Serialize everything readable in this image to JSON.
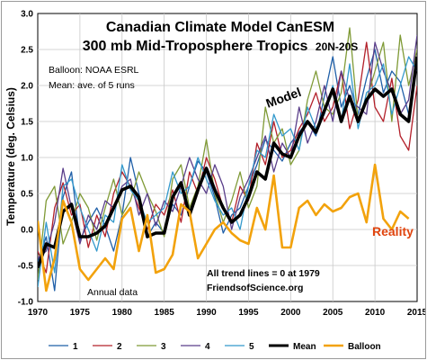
{
  "chart_data": {
    "type": "line",
    "title_line1": "Canadian Climate Model CanESM",
    "title_line2": "300 mb Mid-Troposphere Tropics",
    "title_region": "20N-20S",
    "ylabel": "Temperature (deg. Celsius)",
    "xlabel": "",
    "xlim": [
      1970,
      2015
    ],
    "ylim": [
      -1.0,
      3.0
    ],
    "x_ticks": [
      "1970",
      "1975",
      "1980",
      "1985",
      "1990",
      "1995",
      "2000",
      "2005",
      "2010",
      "2015"
    ],
    "y_ticks": [
      "3.0",
      "2.5",
      "2.0",
      "1.5",
      "1.0",
      "0.5",
      "0.0",
      "-0.5",
      "-1.0"
    ],
    "grid": true,
    "legend_position": "bottom",
    "annotations": {
      "balloon_source": "Balloon: NOAA ESRL",
      "mean_note": "Mean: ave. of 5 runs",
      "model_label": "Model",
      "reality_label": "Reality",
      "trend_note": "All trend lines = 0 at 1979",
      "site": "FriendsofScience.org",
      "annual_note": "Annual data"
    },
    "x": [
      1970,
      1971,
      1972,
      1973,
      1974,
      1975,
      1976,
      1977,
      1978,
      1979,
      1980,
      1981,
      1982,
      1983,
      1984,
      1985,
      1986,
      1987,
      1988,
      1989,
      1990,
      1991,
      1992,
      1993,
      1994,
      1995,
      1996,
      1997,
      1998,
      1999,
      2000,
      2001,
      2002,
      2003,
      2004,
      2005,
      2006,
      2007,
      2008,
      2009,
      2010,
      2011,
      2012,
      2013,
      2014,
      2015
    ],
    "series": [
      {
        "name": "1",
        "color": "#1f5fa8",
        "width": 1.3,
        "values": [
          -0.45,
          -0.1,
          -0.85,
          0.45,
          0.8,
          -0.15,
          0.1,
          0.3,
          0.05,
          -0.3,
          0.2,
          1.0,
          0.5,
          -0.1,
          0.1,
          -0.05,
          0.35,
          0.2,
          0.6,
          0.95,
          0.8,
          0.45,
          -0.05,
          0.2,
          0.3,
          0.6,
          0.9,
          1.25,
          1.1,
          0.95,
          1.2,
          1.35,
          1.5,
          1.3,
          1.85,
          2.4,
          1.7,
          2.0,
          1.6,
          2.1,
          2.5,
          1.9,
          2.2,
          2.05,
          1.6,
          2.3
        ]
      },
      {
        "name": "2",
        "color": "#b3202a",
        "width": 1.3,
        "values": [
          -0.3,
          -0.6,
          0.3,
          0.65,
          0.2,
          0.35,
          -0.25,
          0.2,
          -0.1,
          0.5,
          0.8,
          0.6,
          0.3,
          0.0,
          0.35,
          0.2,
          0.55,
          0.1,
          0.8,
          0.5,
          1.0,
          0.7,
          0.3,
          0.1,
          0.6,
          0.4,
          1.2,
          0.9,
          1.5,
          1.0,
          1.1,
          1.4,
          1.6,
          1.9,
          1.5,
          1.7,
          2.2,
          1.4,
          1.8,
          2.6,
          1.7,
          1.5,
          2.1,
          1.3,
          1.1,
          2.0
        ]
      },
      {
        "name": "3",
        "color": "#7f9a36",
        "width": 1.3,
        "values": [
          -0.7,
          0.4,
          0.6,
          -0.2,
          0.1,
          0.5,
          0.3,
          -0.15,
          0.3,
          0.7,
          0.2,
          0.4,
          0.8,
          0.5,
          0.25,
          -0.1,
          0.7,
          0.9,
          0.3,
          0.6,
          1.25,
          0.5,
          0.1,
          0.4,
          0.8,
          0.3,
          0.6,
          1.7,
          1.2,
          1.4,
          0.9,
          1.1,
          1.8,
          2.2,
          1.7,
          1.6,
          1.9,
          2.8,
          1.5,
          1.8,
          2.2,
          2.6,
          1.5,
          2.7,
          2.0,
          2.5
        ]
      },
      {
        "name": "4",
        "color": "#5a3e8a",
        "width": 1.3,
        "values": [
          -0.4,
          -0.3,
          0.1,
          0.85,
          0.3,
          -0.2,
          0.2,
          0.0,
          0.4,
          0.3,
          0.6,
          0.7,
          0.2,
          0.5,
          0.05,
          0.4,
          0.25,
          0.6,
          1.0,
          0.7,
          0.5,
          0.9,
          0.6,
          0.0,
          0.45,
          0.7,
          1.0,
          1.3,
          0.8,
          1.2,
          1.0,
          1.7,
          1.2,
          1.5,
          2.0,
          1.5,
          2.2,
          1.8,
          1.7,
          1.6,
          2.6,
          2.2,
          1.9,
          1.6,
          1.8,
          2.7
        ]
      },
      {
        "name": "5",
        "color": "#3399cc",
        "width": 1.3,
        "values": [
          -0.8,
          0.1,
          -0.6,
          0.6,
          0.7,
          0.3,
          0.0,
          -0.3,
          0.2,
          0.1,
          0.9,
          0.55,
          0.4,
          0.1,
          0.2,
          0.3,
          0.8,
          0.5,
          0.6,
          1.0,
          0.7,
          0.4,
          0.2,
          0.3,
          0.0,
          0.6,
          1.1,
          1.0,
          1.6,
          1.3,
          1.4,
          1.1,
          1.7,
          1.4,
          1.6,
          2.0,
          1.5,
          2.3,
          1.4,
          1.9,
          2.0,
          2.3,
          1.6,
          2.0,
          2.4,
          2.2
        ]
      },
      {
        "name": "Mean",
        "color": "#000000",
        "width": 3.6,
        "values": [
          -0.53,
          -0.2,
          -0.25,
          0.25,
          0.35,
          -0.1,
          -0.1,
          -0.05,
          0.05,
          0.3,
          0.55,
          0.6,
          0.45,
          -0.1,
          -0.05,
          -0.05,
          0.45,
          0.65,
          0.2,
          0.55,
          0.85,
          0.55,
          0.3,
          0.1,
          0.2,
          0.45,
          0.8,
          0.7,
          1.2,
          1.05,
          1.0,
          1.3,
          1.5,
          1.35,
          1.65,
          1.95,
          1.5,
          1.85,
          1.5,
          1.8,
          1.95,
          1.85,
          1.95,
          1.6,
          1.5,
          2.4
        ]
      },
      {
        "name": "Balloon",
        "color": "#f2a20c",
        "width": 2.6,
        "values": [
          0.12,
          -0.85,
          -0.4,
          0.4,
          0.1,
          -0.55,
          -0.7,
          -0.55,
          -0.4,
          -0.55,
          0.15,
          0.3,
          -0.3,
          0.2,
          -0.6,
          -0.55,
          -0.35,
          0.35,
          0.25,
          -0.4,
          -0.2,
          0.0,
          0.1,
          -0.05,
          -0.15,
          -0.2,
          0.3,
          0.0,
          0.75,
          -0.25,
          -0.25,
          0.3,
          0.4,
          0.2,
          0.35,
          0.25,
          0.3,
          0.45,
          0.5,
          0.1,
          0.9,
          0.15,
          0.0,
          0.25,
          0.15,
          null
        ]
      }
    ]
  }
}
